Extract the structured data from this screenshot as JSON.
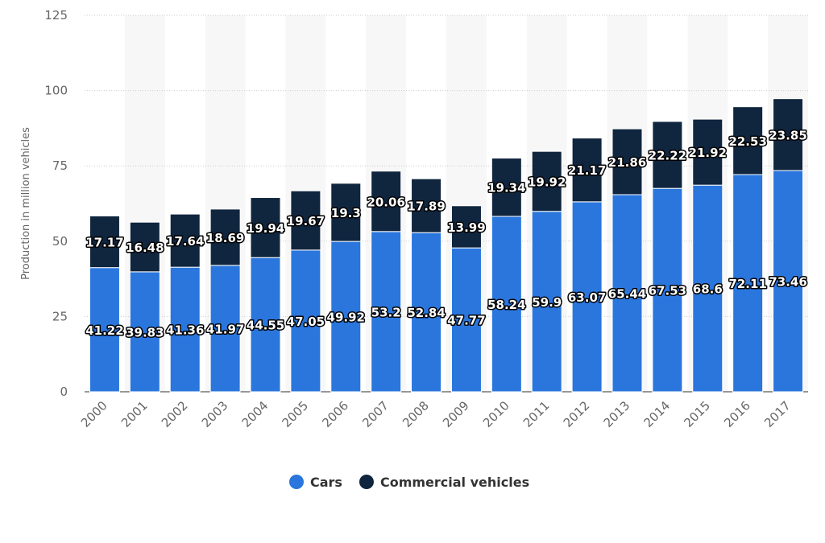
{
  "chart_data": {
    "type": "bar",
    "stacked": true,
    "title": "",
    "xlabel": "",
    "ylabel": "Production in million vehicles",
    "ylim": [
      0,
      125
    ],
    "yticks": [
      0,
      25,
      50,
      75,
      100,
      125
    ],
    "grid": true,
    "legend_placement": "bottom",
    "categories": [
      "2000",
      "2001",
      "2002",
      "2003",
      "2004",
      "2005",
      "2006",
      "2007",
      "2008",
      "2009",
      "2010",
      "2011",
      "2012",
      "2013",
      "2014",
      "2015",
      "2016",
      "2017"
    ],
    "series": [
      {
        "name": "Cars",
        "color": "#2a76dd",
        "values": [
          41.22,
          39.83,
          41.36,
          41.97,
          44.55,
          47.05,
          49.92,
          53.2,
          52.84,
          47.77,
          58.24,
          59.9,
          63.07,
          65.44,
          67.53,
          68.6,
          72.11,
          73.46
        ]
      },
      {
        "name": "Commercial vehicles",
        "color": "#10253e",
        "values": [
          17.17,
          16.48,
          17.64,
          18.69,
          19.94,
          19.67,
          19.3,
          20.06,
          17.89,
          13.99,
          19.34,
          19.92,
          21.17,
          21.86,
          22.22,
          21.92,
          22.53,
          23.85
        ]
      }
    ]
  }
}
